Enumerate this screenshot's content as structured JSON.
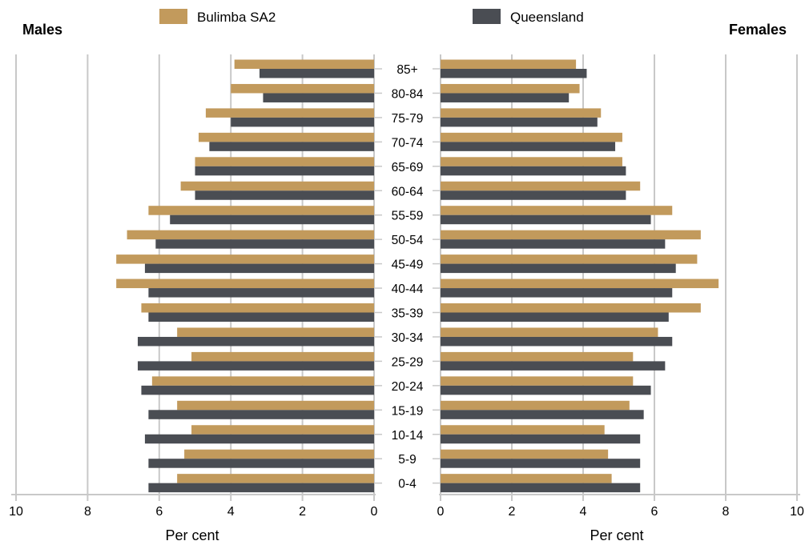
{
  "chart_data": {
    "type": "bar",
    "orientation": "horizontal",
    "layout": "population-pyramid",
    "left_panel_title": "Males",
    "right_panel_title": "Females",
    "xlabel": "Per cent",
    "xlim": [
      0,
      10
    ],
    "xticks": [
      0,
      2,
      4,
      6,
      8,
      10
    ],
    "grid": true,
    "legend_position": "top",
    "colors": {
      "Bulimba SA2": "#c29a5c",
      "Queensland": "#4a4d53"
    },
    "categories": [
      "85+",
      "80-84",
      "75-79",
      "70-74",
      "65-69",
      "60-64",
      "55-59",
      "50-54",
      "45-49",
      "40-44",
      "35-39",
      "30-34",
      "25-29",
      "20-24",
      "15-19",
      "10-14",
      "5-9",
      "0-4"
    ],
    "series": [
      {
        "name": "Bulimba SA2",
        "sex": "Males",
        "values": [
          3.9,
          4.0,
          4.7,
          4.9,
          5.0,
          5.4,
          6.3,
          6.9,
          7.2,
          7.2,
          6.5,
          5.5,
          5.1,
          6.2,
          5.5,
          5.1,
          5.3,
          5.5
        ]
      },
      {
        "name": "Queensland",
        "sex": "Males",
        "values": [
          3.2,
          3.1,
          4.0,
          4.6,
          5.0,
          5.0,
          5.7,
          6.1,
          6.4,
          6.3,
          6.3,
          6.6,
          6.6,
          6.5,
          6.3,
          6.4,
          6.3,
          6.3
        ]
      },
      {
        "name": "Bulimba SA2",
        "sex": "Females",
        "values": [
          3.8,
          3.9,
          4.5,
          5.1,
          5.1,
          5.6,
          6.5,
          7.3,
          7.2,
          7.8,
          7.3,
          6.1,
          5.4,
          5.4,
          5.3,
          4.6,
          4.7,
          4.8
        ]
      },
      {
        "name": "Queensland",
        "sex": "Females",
        "values": [
          4.1,
          3.6,
          4.4,
          4.9,
          5.2,
          5.2,
          5.9,
          6.3,
          6.6,
          6.5,
          6.4,
          6.5,
          6.3,
          5.9,
          5.7,
          5.6,
          5.6,
          5.6
        ]
      }
    ]
  }
}
